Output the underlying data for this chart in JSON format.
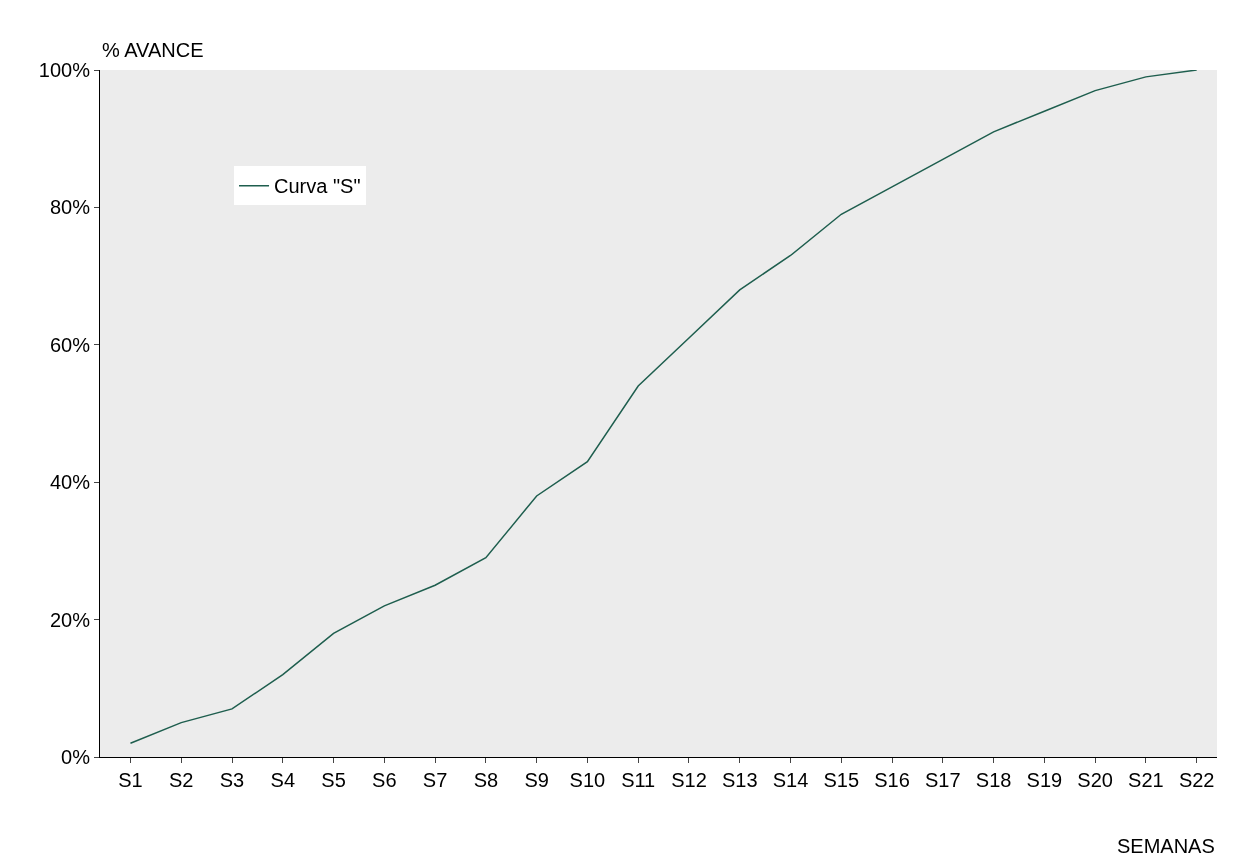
{
  "chart_data": {
    "type": "line",
    "xlabel": "SEMANAS",
    "ylabel": "% AVANCE",
    "categories": [
      "S1",
      "S2",
      "S3",
      "S4",
      "S5",
      "S6",
      "S7",
      "S8",
      "S9",
      "S10",
      "S11",
      "S12",
      "S13",
      "S14",
      "S15",
      "S16",
      "S17",
      "S18",
      "S19",
      "S20",
      "S21",
      "S22"
    ],
    "series": [
      {
        "name": "Curva \"S\"",
        "color": "#1e5e4e",
        "values": [
          2,
          5,
          7,
          12,
          18,
          22,
          25,
          29,
          38,
          43,
          54,
          61,
          68,
          73,
          79,
          83,
          87,
          91,
          94,
          97,
          99,
          100
        ]
      }
    ],
    "ylim": [
      0,
      100
    ],
    "yticks": [
      {
        "value": 0,
        "label": "0%"
      },
      {
        "value": 20,
        "label": "20%"
      },
      {
        "value": 40,
        "label": "40%"
      },
      {
        "value": 60,
        "label": "60%"
      },
      {
        "value": 80,
        "label": "80%"
      },
      {
        "value": 100,
        "label": "100%"
      }
    ],
    "legend": "top left",
    "grid": false,
    "marker": "none",
    "line_style": "solid"
  }
}
